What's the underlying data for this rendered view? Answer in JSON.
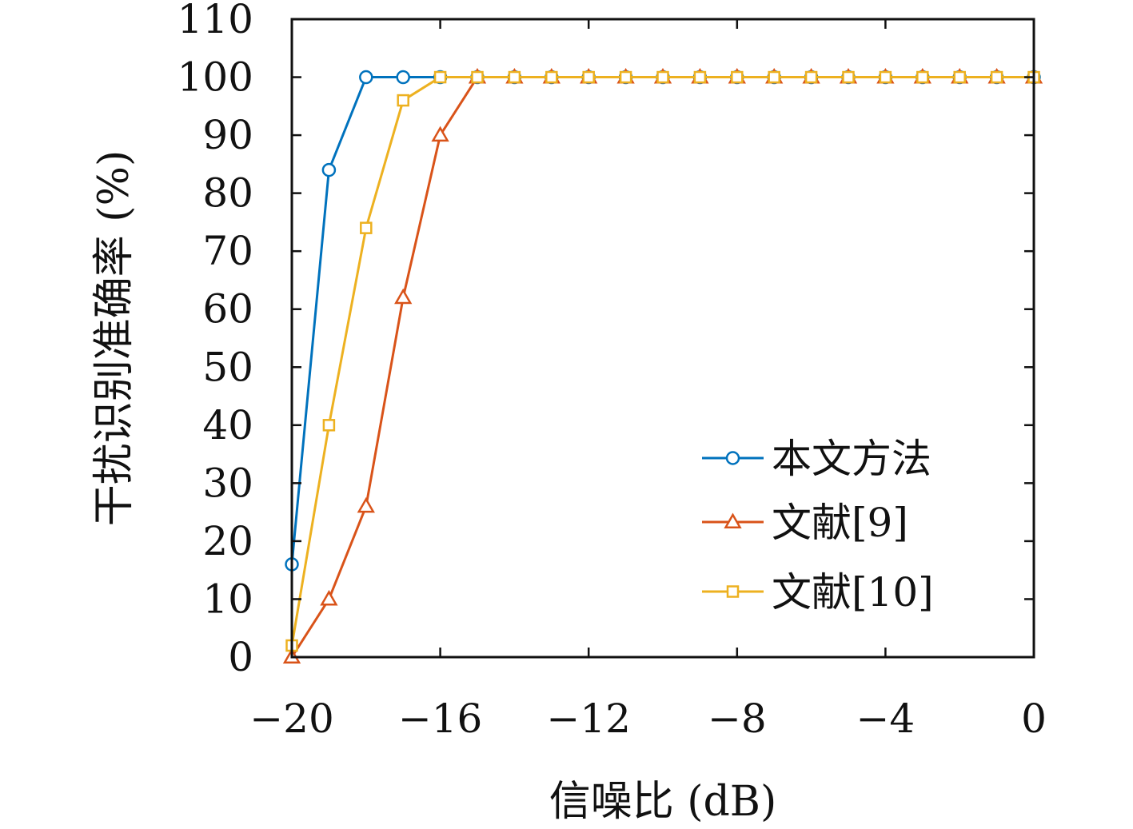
{
  "chart_data": {
    "type": "line",
    "xlabel": "信噪比 (dB)",
    "ylabel": "干扰识别准确率 (%)",
    "xlim": [
      -20,
      0
    ],
    "ylim": [
      0,
      110
    ],
    "xticks": [
      -20,
      -16,
      -12,
      -8,
      -4,
      0
    ],
    "xtick_labels": [
      "−20",
      "−16",
      "−12",
      "−8",
      "−4",
      "0"
    ],
    "yticks": [
      0,
      10,
      20,
      30,
      40,
      50,
      60,
      70,
      80,
      90,
      100,
      110
    ],
    "ytick_labels": [
      "0",
      "10",
      "20",
      "30",
      "40",
      "50",
      "60",
      "70",
      "80",
      "90",
      "100",
      "110"
    ],
    "grid": false,
    "legend_position": "bottom-right",
    "x": [
      -20,
      -19,
      -18,
      -17,
      -16,
      -15,
      -14,
      -13,
      -12,
      -11,
      -10,
      -9,
      -8,
      -7,
      -6,
      -5,
      -4,
      -3,
      -2,
      -1,
      0
    ],
    "series": [
      {
        "name": "本文方法",
        "color": "#0072BD",
        "marker": "circle",
        "values": [
          16,
          84,
          100,
          100,
          100,
          100,
          100,
          100,
          100,
          100,
          100,
          100,
          100,
          100,
          100,
          100,
          100,
          100,
          100,
          100,
          100
        ]
      },
      {
        "name": "文献[9]",
        "color": "#D95319",
        "marker": "triangle",
        "values": [
          0,
          10,
          26,
          62,
          90,
          100,
          100,
          100,
          100,
          100,
          100,
          100,
          100,
          100,
          100,
          100,
          100,
          100,
          100,
          100,
          100
        ]
      },
      {
        "name": "文献[10]",
        "color": "#EDB120",
        "marker": "square",
        "values": [
          2,
          40,
          74,
          96,
          100,
          100,
          100,
          100,
          100,
          100,
          100,
          100,
          100,
          100,
          100,
          100,
          100,
          100,
          100,
          100,
          100
        ]
      }
    ]
  }
}
